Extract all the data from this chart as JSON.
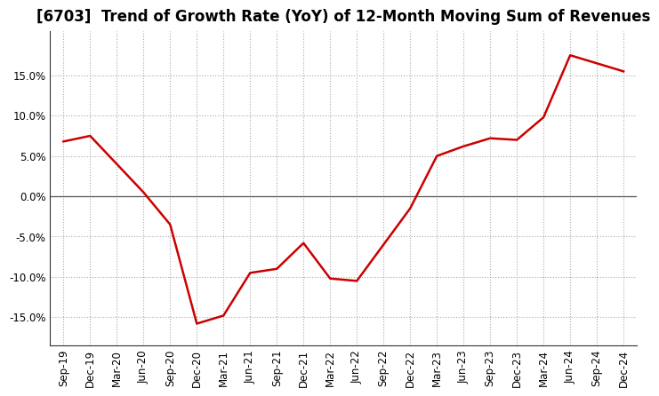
{
  "title": "[6703]  Trend of Growth Rate (YoY) of 12-Month Moving Sum of Revenues",
  "line_color": "#cc0000",
  "line_width": 1.8,
  "background_color": "#ffffff",
  "plot_bg_color": "#ffffff",
  "grid_color": "#aaaaaa",
  "zero_line_color": "#555555",
  "x_labels": [
    "Sep-19",
    "Dec-19",
    "Mar-20",
    "Jun-20",
    "Sep-20",
    "Dec-20",
    "Mar-21",
    "Jun-21",
    "Sep-21",
    "Dec-21",
    "Mar-22",
    "Jun-22",
    "Sep-22",
    "Dec-22",
    "Mar-23",
    "Jun-23",
    "Sep-23",
    "Dec-23",
    "Mar-24",
    "Jun-24",
    "Sep-24",
    "Dec-24"
  ],
  "y_values": [
    6.8,
    7.5,
    4.0,
    0.5,
    -3.5,
    -15.8,
    -14.8,
    -9.5,
    -9.0,
    -5.8,
    -10.2,
    -10.5,
    -6.0,
    -1.5,
    5.0,
    6.2,
    7.2,
    7.0,
    9.8,
    17.5,
    16.5,
    15.5
  ],
  "ylim": [
    -18.5,
    20.5
  ],
  "yticks": [
    -15.0,
    -10.0,
    -5.0,
    0.0,
    5.0,
    10.0,
    15.0
  ],
  "title_fontsize": 12,
  "tick_fontsize": 8.5
}
